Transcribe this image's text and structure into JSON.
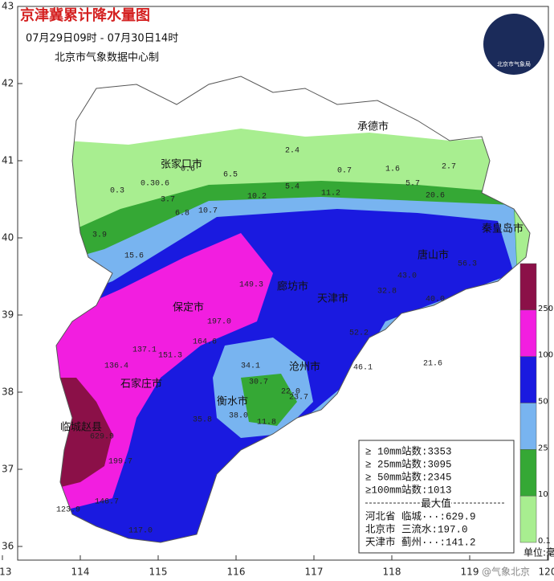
{
  "header": {
    "title": "京津冀累计降水量图",
    "period": "07月29日09时 - 07月30日14时",
    "producer": "北京市气象数据中心制",
    "logo": "北京市气象局"
  },
  "axes": {
    "lat_ticks": [
      43,
      42,
      41,
      40,
      39,
      38,
      37,
      36
    ],
    "lon_ticks": [
      113,
      114,
      115,
      116,
      117,
      118,
      119,
      120
    ]
  },
  "cities": [
    "承德市",
    "张家口市",
    "保定市",
    "石家庄市",
    "衡水市",
    "沧州市",
    "廊坊市",
    "天津市",
    "唐山市",
    "秦皇岛市",
    "临城赵县"
  ],
  "stations": [
    "2.4",
    "0.7",
    "1.6",
    "2.7",
    "0.6",
    "6.5",
    "0.3",
    "0.30.6",
    "3.7",
    "6.8",
    "10.7",
    "10.2",
    "5.4",
    "11.2",
    "5.7",
    "20.6",
    "3.9",
    "15.6",
    "149.3",
    "197.0",
    "164.6",
    "32.8",
    "40.0",
    "56.3",
    "43.0",
    "52.2",
    "21.6",
    "46.1",
    "34.1",
    "30.7",
    "22.0",
    "23.7",
    "35.8",
    "38.0",
    "11.8",
    "137.1",
    "151.3",
    "136.4",
    "199.7",
    "146.7",
    "117.0",
    "123.9",
    "629.9"
  ],
  "colorbar": [
    {
      "label": "250",
      "color": "#8b1048"
    },
    {
      "label": "100",
      "color": "#f21ee0"
    },
    {
      "label": "50",
      "color": "#1a1ae0"
    },
    {
      "label": "25",
      "color": "#78b4f0"
    },
    {
      "label": "10",
      "color": "#35a835"
    },
    {
      "label": "0.1",
      "color": "#a8ee90"
    }
  ],
  "unit": "单位:毫米",
  "stats": {
    "counts": [
      "≥ 10mm站数:3353",
      "≥ 25mm站数:3095",
      "≥ 50mm站数:2345",
      "≥100mm站数:1013"
    ],
    "max_title": "最大值",
    "max": [
      "河北省 临城···:629.9",
      "北京市 三流水:197.0",
      "天津市 蓟州···:141.2"
    ]
  },
  "watermark": "@气象北京"
}
